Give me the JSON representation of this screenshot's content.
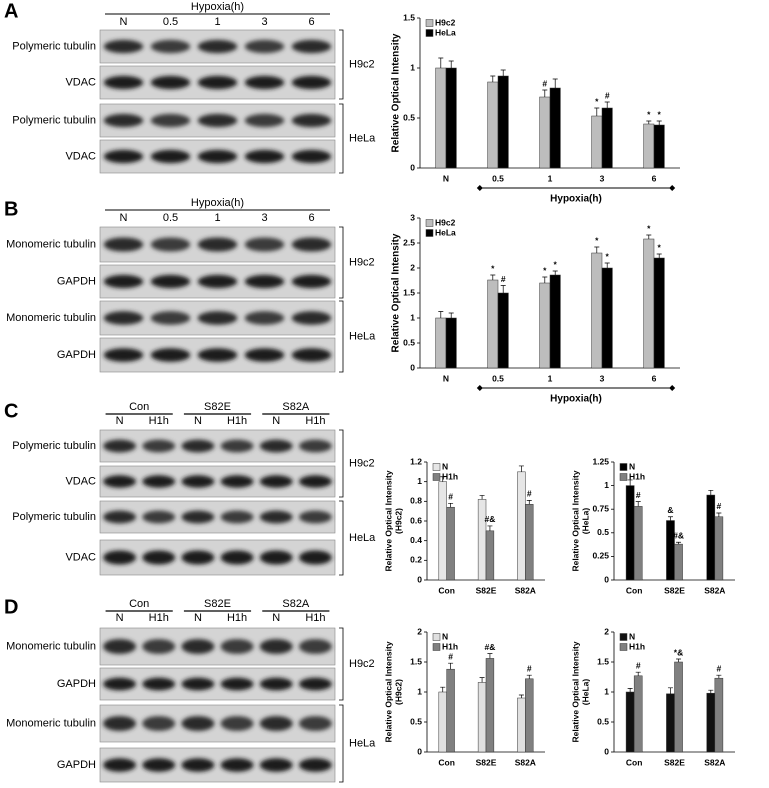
{
  "panels": [
    {
      "letter": "A",
      "header": "Hypoxia(h)",
      "lanes": [
        "N",
        "0.5",
        "1",
        "3",
        "6"
      ],
      "rows": [
        "Polymeric tubulin",
        "VDAC",
        "Polymeric tubulin",
        "VDAC"
      ],
      "cell_lines": [
        "H9c2",
        "HeLa"
      ]
    },
    {
      "letter": "B",
      "header": "Hypoxia(h)",
      "lanes": [
        "N",
        "0.5",
        "1",
        "3",
        "6"
      ],
      "rows": [
        "Monomeric tubulin",
        "GAPDH",
        "Monomeric tubulin",
        "GAPDH"
      ],
      "cell_lines": [
        "H9c2",
        "HeLa"
      ]
    },
    {
      "letter": "C",
      "conditions": [
        "Con",
        "S82E",
        "S82A"
      ],
      "lanes": [
        "N",
        "H1h",
        "N",
        "H1h",
        "N",
        "H1h"
      ],
      "rows": [
        "Polymeric tubulin",
        "VDAC",
        "Polymeric tubulin",
        "VDAC"
      ],
      "cell_lines": [
        "H9c2",
        "HeLa"
      ]
    },
    {
      "letter": "D",
      "conditions": [
        "Con",
        "S82E",
        "S82A"
      ],
      "lanes": [
        "N",
        "H1h",
        "N",
        "H1h",
        "N",
        "H1h"
      ],
      "rows": [
        "Monomeric tubulin",
        "GAPDH",
        "Monomeric tubulin",
        "GAPDH"
      ],
      "cell_lines": [
        "H9c2",
        "HeLa"
      ]
    }
  ],
  "chart_data": [
    {
      "type": "bar",
      "ylabel": "Relative Optical Intensity",
      "xlabel": "Hypoxia(h)",
      "categories": [
        "N",
        "0.5",
        "1",
        "3",
        "6"
      ],
      "ylim": [
        0,
        1.5
      ],
      "yticks": [
        0,
        0.5,
        1,
        1.5
      ],
      "series": [
        {
          "name": "H9c2",
          "color": "#bdbdbd",
          "values": [
            1.0,
            0.86,
            0.71,
            0.52,
            0.44
          ],
          "errors": [
            0.1,
            0.06,
            0.07,
            0.08,
            0.03
          ],
          "markers": [
            null,
            null,
            "#",
            "*",
            "*"
          ]
        },
        {
          "name": "HeLa",
          "color": "#000000",
          "values": [
            1.0,
            0.92,
            0.8,
            0.6,
            0.43
          ],
          "errors": [
            0.07,
            0.06,
            0.09,
            0.06,
            0.04
          ],
          "markers": [
            null,
            null,
            null,
            "#",
            "*"
          ]
        }
      ]
    },
    {
      "type": "bar",
      "ylabel": "Relative Optical Intensity",
      "xlabel": "Hypoxia(h)",
      "categories": [
        "N",
        "0.5",
        "1",
        "3",
        "6"
      ],
      "ylim": [
        0,
        3
      ],
      "yticks": [
        0,
        0.5,
        1,
        1.5,
        2,
        2.5,
        3
      ],
      "series": [
        {
          "name": "H9c2",
          "color": "#bdbdbd",
          "values": [
            1.0,
            1.76,
            1.7,
            2.3,
            2.58
          ],
          "errors": [
            0.13,
            0.1,
            0.12,
            0.12,
            0.08
          ],
          "markers": [
            null,
            "*",
            "*",
            "*",
            "*"
          ]
        },
        {
          "name": "HeLa",
          "color": "#000000",
          "values": [
            1.0,
            1.5,
            1.86,
            2.0,
            2.2
          ],
          "errors": [
            0.1,
            0.15,
            0.08,
            0.1,
            0.08
          ],
          "markers": [
            null,
            "#",
            "*",
            "*",
            "*"
          ]
        }
      ]
    },
    {
      "type": "bar",
      "ylabel": [
        "Relative Optical Intensity",
        "(H9c2)"
      ],
      "categories": [
        "Con",
        "S82E",
        "S82A"
      ],
      "ylim": [
        0,
        1.2
      ],
      "yticks": [
        0,
        0.2,
        0.4,
        0.6,
        0.8,
        1,
        1.2
      ],
      "series": [
        {
          "name": "N",
          "color": "#e6e6e6",
          "values": [
            1.0,
            0.82,
            1.1
          ],
          "errors": [
            0.05,
            0.04,
            0.06
          ],
          "markers": [
            null,
            null,
            null
          ]
        },
        {
          "name": "H1h",
          "color": "#808080",
          "values": [
            0.74,
            0.5,
            0.77
          ],
          "errors": [
            0.04,
            0.05,
            0.04
          ],
          "markers": [
            "#",
            "#&",
            "#"
          ]
        }
      ]
    },
    {
      "type": "bar",
      "ylabel": [
        "Relative Optical Intensity",
        "(HeLa)"
      ],
      "categories": [
        "Con",
        "S82E",
        "S82A"
      ],
      "ylim": [
        0,
        1.25
      ],
      "yticks": [
        0,
        0.25,
        0.5,
        0.75,
        1,
        1.25
      ],
      "series": [
        {
          "name": "N",
          "color": "#000000",
          "values": [
            1.0,
            0.63,
            0.9
          ],
          "errors": [
            0.06,
            0.04,
            0.05
          ],
          "markers": [
            null,
            "&",
            null
          ]
        },
        {
          "name": "H1h",
          "color": "#808080",
          "values": [
            0.78,
            0.38,
            0.67
          ],
          "errors": [
            0.05,
            0.02,
            0.04
          ],
          "markers": [
            "#",
            "#&",
            "#"
          ]
        }
      ]
    },
    {
      "type": "bar",
      "ylabel": [
        "Relative Optical Intensity",
        "(H9c2)"
      ],
      "categories": [
        "Con",
        "S82E",
        "S82A"
      ],
      "ylim": [
        0,
        2
      ],
      "yticks": [
        0,
        0.5,
        1,
        1.5,
        2
      ],
      "series": [
        {
          "name": "N",
          "color": "#e0e0e0",
          "values": [
            1.0,
            1.16,
            0.9
          ],
          "errors": [
            0.08,
            0.08,
            0.05
          ],
          "markers": [
            null,
            null,
            null
          ]
        },
        {
          "name": "H1h",
          "color": "#808080",
          "values": [
            1.38,
            1.56,
            1.22
          ],
          "errors": [
            0.1,
            0.08,
            0.06
          ],
          "markers": [
            "#",
            "#&",
            "#"
          ]
        }
      ]
    },
    {
      "type": "bar",
      "ylabel": [
        "Relative Optical Intensity",
        "(HeLa)"
      ],
      "categories": [
        "Con",
        "S82E",
        "S82A"
      ],
      "ylim": [
        0,
        2
      ],
      "yticks": [
        0,
        0.5,
        1,
        1.5,
        2
      ],
      "series": [
        {
          "name": "N",
          "color": "#111111",
          "values": [
            1.0,
            0.97,
            0.98
          ],
          "errors": [
            0.06,
            0.1,
            0.05
          ],
          "markers": [
            null,
            null,
            null
          ]
        },
        {
          "name": "H1h",
          "color": "#808080",
          "values": [
            1.27,
            1.5,
            1.23
          ],
          "errors": [
            0.06,
            0.05,
            0.05
          ],
          "markers": [
            "#",
            "*&",
            "#"
          ]
        }
      ]
    }
  ]
}
